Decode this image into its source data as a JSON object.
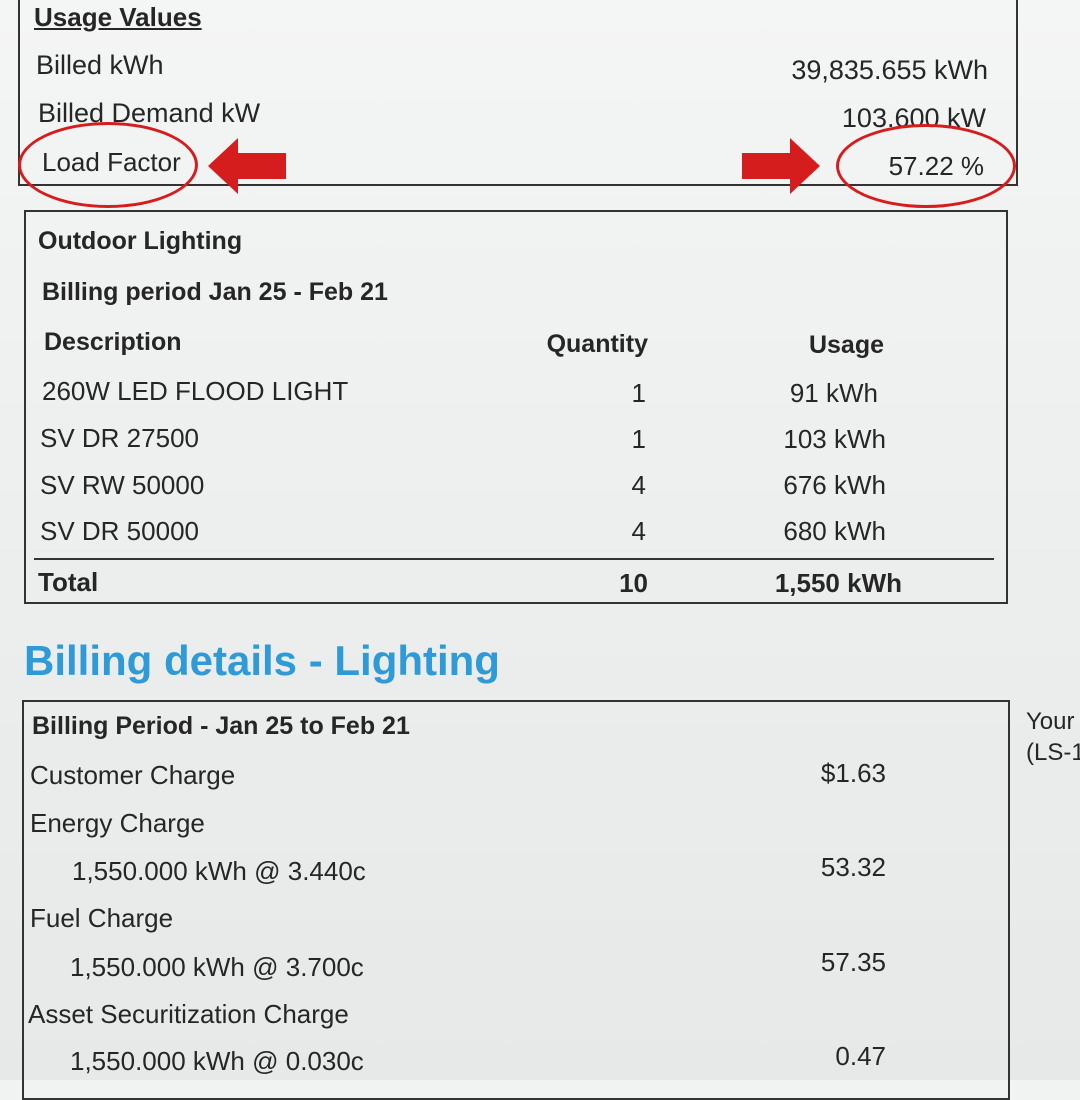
{
  "usage": {
    "heading": "Usage Values",
    "rows": [
      {
        "label": "Billed kWh",
        "value": "39,835.655 kWh"
      },
      {
        "label": "Billed Demand kW",
        "value": "103.600 kW"
      },
      {
        "label": "Load Factor",
        "value": "57.22 %"
      }
    ]
  },
  "annotations": {
    "color": "#d51d1d",
    "circles": [
      "load-factor-label",
      "load-factor-value"
    ],
    "arrows": [
      "arrow-left-icon",
      "arrow-right-icon"
    ]
  },
  "lighting": {
    "title": "Outdoor Lighting",
    "period": "Billing period Jan 25 - Feb 21",
    "columns": [
      "Description",
      "Quantity",
      "Usage"
    ],
    "rows": [
      {
        "description": "260W LED FLOOD LIGHT",
        "quantity": "1",
        "usage": "91 kWh"
      },
      {
        "description": "SV DR 27500",
        "quantity": "1",
        "usage": "103 kWh"
      },
      {
        "description": "SV RW 50000",
        "quantity": "4",
        "usage": "676 kWh"
      },
      {
        "description": "SV DR 50000",
        "quantity": "4",
        "usage": "680 kWh"
      }
    ],
    "total": {
      "label": "Total",
      "quantity": "10",
      "usage": "1,550 kWh"
    }
  },
  "billing": {
    "heading": "Billing details - Lighting",
    "heading_color": "#2e9ad8",
    "period": "Billing Period - Jan 25 to Feb 21",
    "customer_charge": {
      "label": "Customer Charge",
      "amount": "$1.63"
    },
    "energy_charge": {
      "label": "Energy Charge",
      "detail": "1,550.000 kWh @ 3.440c",
      "amount": "53.32"
    },
    "fuel_charge": {
      "label": "Fuel Charge",
      "detail": "1,550.000 kWh @ 3.700c",
      "amount": "57.35"
    },
    "asset_charge": {
      "label": "Asset Securitization Charge",
      "detail": "1,550.000 kWh @ 0.030c",
      "amount": "0.47"
    },
    "side_text": [
      "Your",
      "(LS-1"
    ]
  }
}
